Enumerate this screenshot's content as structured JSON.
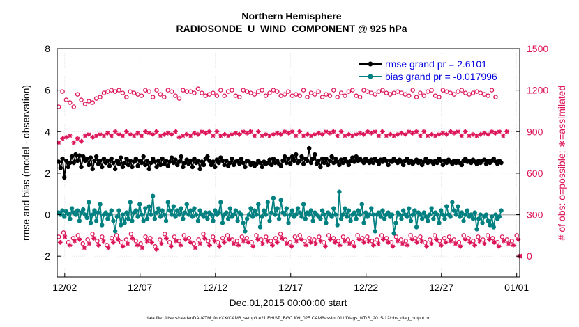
{
  "chart_data": {
    "type": "line",
    "title_line1": "Northern Hemisphere",
    "title_line2": "RADIOSONDE_U_WIND_COMPONENT @ 925 hPa",
    "xlabel": "Dec.01,2015 00:00:00 start",
    "ylabel_left": "rmse and bias (model - observation)",
    "ylabel_right": "# of obs: o=possible; ∗=assimilated",
    "footnote": "data file: /Users/raeder/DAI/ATM_forcXX/CAM6_setup/f.e21.FHIST_BGC.f09_025.CAM6assim.011/Diags_NTrS_2015-12/obs_diag_output.nc",
    "x_range_days": [
      0.5,
      31.2
    ],
    "x_ticks": [
      {
        "day": 1,
        "label": "12/02"
      },
      {
        "day": 6,
        "label": "12/07"
      },
      {
        "day": 11,
        "label": "12/12"
      },
      {
        "day": 16,
        "label": "12/17"
      },
      {
        "day": 21,
        "label": "12/22"
      },
      {
        "day": 26,
        "label": "12/27"
      },
      {
        "day": 31,
        "label": "01/01"
      }
    ],
    "y_left_range": [
      -3,
      8
    ],
    "y_left_ticks": [
      "-2",
      "0",
      "2",
      "4",
      "6",
      "8"
    ],
    "y_right_range": [
      -150,
      1500
    ],
    "y_right_ticks": [
      "0",
      "300",
      "600",
      "900",
      "1200",
      "1500"
    ],
    "legend": {
      "placement": "top-right",
      "rmse": "rmse grand pr = 2.6101",
      "bias": "bias grand pr = -0.017996"
    },
    "colors": {
      "rmse": "#000000",
      "bias": "#008080",
      "obs": "#dc1459",
      "zero_line": "#bbbbbb",
      "grid": "#d9d9d9"
    },
    "grid": true,
    "time_step_days": 0.25,
    "series": [
      {
        "name": "rmse grand pr = 2.6101",
        "values": [
          2.55,
          2.25,
          2.7,
          1.8,
          2.6,
          2.3,
          2.5,
          2.8,
          2.5,
          2.9,
          2.6,
          2.85,
          2.3,
          2.8,
          2.6,
          2.7,
          2.4,
          2.75,
          2.2,
          2.6,
          2.8,
          2.45,
          2.6,
          2.3,
          2.7,
          2.5,
          2.6,
          2.35,
          2.7,
          2.5,
          2.2,
          2.6,
          2.45,
          2.75,
          2.3,
          2.5,
          2.7,
          2.4,
          2.6,
          2.3,
          2.55,
          2.7,
          2.35,
          2.6,
          2.5,
          2.8,
          2.4,
          2.6,
          2.2,
          2.5,
          2.7,
          2.55,
          2.3,
          2.6,
          2.4,
          2.7,
          2.45,
          2.6,
          2.35,
          2.55,
          2.75,
          2.5,
          2.65,
          2.4,
          2.55,
          2.8,
          2.3,
          2.5,
          2.65,
          2.45,
          2.6,
          2.3,
          2.7,
          2.5,
          2.6,
          2.2,
          2.55,
          2.4,
          2.7,
          2.8,
          2.6,
          2.4,
          2.55,
          2.3,
          2.65,
          2.5,
          2.75,
          2.6,
          2.4,
          2.6,
          2.35,
          2.5,
          2.7,
          2.4,
          2.55,
          2.6,
          2.45,
          2.7,
          2.5,
          2.3,
          2.6,
          2.55,
          2.4,
          2.5,
          2.35,
          2.45,
          2.6,
          2.5,
          2.3,
          2.55,
          2.45,
          2.5,
          2.65,
          2.4,
          2.7,
          2.5,
          2.6,
          2.45,
          2.35,
          2.6,
          2.8,
          2.5,
          2.7,
          2.45,
          2.8,
          2.6,
          2.9,
          2.5,
          2.6,
          2.8,
          2.45,
          2.7,
          2.6,
          3.2,
          2.5,
          2.7,
          2.9,
          2.45,
          2.6,
          2.3,
          2.7,
          2.5,
          2.7,
          2.4,
          2.6,
          2.8,
          2.5,
          2.7,
          2.55,
          2.4,
          2.65,
          2.5,
          2.7,
          2.55,
          2.4,
          2.6,
          2.75,
          2.55,
          2.8,
          2.6,
          2.7,
          2.6,
          2.5,
          2.7,
          2.6,
          2.5,
          2.65,
          2.5,
          2.7,
          2.6,
          2.45,
          2.65,
          2.55,
          2.7,
          2.6,
          2.4,
          2.6,
          2.55,
          2.7,
          2.6,
          2.5,
          2.65,
          2.55,
          2.4,
          2.6,
          2.7,
          2.5,
          2.6,
          2.45,
          2.55,
          2.65,
          2.5,
          2.6,
          2.4,
          2.55,
          2.7,
          2.5,
          2.6,
          2.55,
          2.45,
          2.6,
          2.5,
          2.7,
          2.6,
          2.4,
          2.6,
          2.5,
          2.65,
          2.55,
          2.45,
          2.6,
          2.5,
          2.6,
          2.5,
          2.4,
          2.6,
          2.7,
          2.55,
          2.6,
          2.5,
          2.65,
          2.55,
          2.45,
          2.6,
          2.5,
          2.6,
          2.65,
          2.45,
          2.6,
          2.5,
          2.6,
          2.7,
          2.55,
          2.45,
          2.6,
          2.5
        ]
      },
      {
        "name": "bias grand pr = -0.017996",
        "values": [
          0.1,
          0.0,
          0.2,
          -0.1,
          0.15,
          0.05,
          -0.2,
          0.3,
          0.1,
          0.0,
          0.2,
          -0.3,
          0.1,
          0.25,
          0.0,
          -0.15,
          0.6,
          -0.4,
          0.0,
          0.2,
          -0.3,
          0.1,
          0.5,
          -0.5,
          0.0,
          0.1,
          -0.2,
          0.0,
          0.2,
          -0.3,
          -0.8,
          -0.1,
          0.2,
          -0.5,
          0.0,
          -0.4,
          0.1,
          -0.2,
          0.6,
          -0.3,
          0.1,
          0.2,
          -0.1,
          0.5,
          0.0,
          -0.3,
          0.3,
          -0.2,
          0.4,
          0.0,
          0.9,
          -0.2,
          0.1,
          0.3,
          -0.1,
          0.2,
          0.0,
          -0.3,
          0.6,
          0.2,
          0.0,
          0.4,
          -0.1,
          0.2,
          0.0,
          0.3,
          -0.2,
          0.1,
          0.5,
          0.0,
          0.2,
          -0.1,
          0.3,
          0.0,
          -0.3,
          0.2,
          0.0,
          -0.1,
          0.1,
          -0.2,
          0.1,
          0.0,
          -0.3,
          0.2,
          0.0,
          0.1,
          0.6,
          -0.4,
          0.0,
          0.1,
          -0.2,
          0.3,
          -0.1,
          0.0,
          0.2,
          -0.3,
          0.1,
          0.0,
          -0.4,
          -0.8,
          -0.2,
          0.0,
          0.3,
          -0.1,
          0.2,
          0.0,
          0.5,
          -0.6,
          -0.1,
          0.2,
          0.0,
          0.6,
          -0.3,
          0.1,
          0.8,
          0.0,
          0.3,
          -0.2,
          0.7,
          0.1,
          0.0,
          0.3,
          -0.4,
          0.0,
          0.2,
          -0.1,
          0.0,
          0.3,
          0.1,
          -0.1,
          0.5,
          -0.2,
          0.1,
          0.0,
          0.2,
          -0.3,
          0.1,
          0.0,
          -0.1,
          -0.2,
          0.2,
          0.0,
          -0.4,
          0.1,
          0.0,
          -0.1,
          0.3,
          0.0,
          -0.5,
          1.1,
          -0.2,
          0.0,
          0.3,
          -0.1,
          0.2,
          -0.3,
          0.0,
          0.1,
          -0.2,
          0.2,
          0.0,
          0.5,
          -0.4,
          0.1,
          -0.1,
          0.0,
          0.3,
          0.0,
          -0.8,
          0.0,
          0.1,
          -0.1,
          0.2,
          -0.2,
          0.0,
          0.1,
          -0.1,
          0.0,
          -0.9,
          -0.4,
          0.1,
          0.0,
          -0.2,
          0.2,
          0.0,
          -0.1,
          0.3,
          -0.3,
          0.0,
          0.2,
          -0.6,
          0.1,
          0.0,
          -0.2,
          0.1,
          -0.1,
          -0.3,
          0.0,
          0.3,
          -0.2,
          0.1,
          0.0,
          -0.4,
          0.2,
          0.0,
          -0.2,
          0.4,
          0.0,
          -0.1,
          0.6,
          0.2,
          0.0,
          0.4,
          -0.1,
          0.1,
          -0.3,
          0.0,
          0.2,
          -0.1,
          0.0,
          -0.2,
          0.1,
          -0.7,
          -0.2,
          0.0,
          -0.4,
          -0.1,
          0.0,
          -0.3,
          -0.5,
          -0.1,
          -0.6,
          0.0,
          -0.2,
          -0.1,
          0.2
        ]
      },
      {
        "name": "possible",
        "values": [
          1080,
          1150,
          1190,
          1110,
          1130,
          1100,
          1110,
          1120,
          1080,
          1150,
          1170,
          1110,
          1130,
          1180,
          1100,
          1160,
          1120,
          1130,
          1110,
          1180,
          1140,
          1200,
          1150,
          1190,
          1180,
          1150,
          1190,
          1140,
          1200,
          1170,
          1190,
          1180,
          1200,
          1160,
          1180,
          1210,
          1150,
          1170,
          1190,
          1140,
          1180,
          1130,
          1170,
          1190,
          1160,
          1180,
          1200,
          1170,
          1190,
          1160,
          1150,
          1180,
          1200,
          1160,
          1170,
          1190,
          1150,
          1180,
          1200,
          1170,
          1190,
          1180,
          1160,
          1190,
          1140,
          1180,
          1200,
          1170,
          1190,
          1160,
          1190,
          1200,
          1180,
          1170,
          1210,
          1150,
          1180,
          1190,
          1160,
          1200,
          1170,
          1150,
          1180,
          1190,
          1160,
          1170,
          1200,
          1180,
          1160,
          1150,
          1190,
          1170,
          1200,
          1180,
          1160,
          1190,
          1150,
          1180,
          1200,
          1170,
          1190,
          1160,
          1180,
          1200,
          1170,
          1150,
          1190,
          1180,
          1200,
          1170,
          1160,
          1190,
          1180,
          1150,
          1200,
          1170,
          1190,
          1180,
          1160,
          1200,
          1170,
          1150,
          1190,
          1180,
          1160,
          1200,
          1170,
          1190,
          1160,
          1180,
          1200,
          1170,
          1150,
          1190,
          1180,
          1200,
          1170,
          1160,
          1190,
          1180,
          1150,
          1200,
          1170,
          1190,
          1160,
          1180,
          1200,
          1170,
          1150,
          1190,
          1180,
          1200,
          1160,
          1180,
          1190,
          1170,
          1200,
          1180,
          1160,
          1190,
          1150,
          1180,
          1200,
          1170,
          1190,
          1160,
          1180,
          1200,
          1170,
          1150,
          1190,
          1180,
          1200,
          1160,
          1180,
          1190,
          1170,
          1200,
          1180,
          1160,
          1190,
          1150,
          1180,
          1200,
          1170,
          1190,
          1160,
          1180,
          1200,
          1170,
          1150,
          1190,
          1180,
          1200,
          1160,
          1180,
          1190,
          1170,
          1200,
          1180,
          1160,
          1190,
          1150,
          1180,
          1200,
          1170,
          1190,
          1160,
          1180,
          1200,
          1170,
          1150,
          1190,
          1180,
          1200,
          1160,
          1180,
          1190,
          1170,
          1200,
          1180,
          1160,
          1190,
          1150,
          1180,
          1200,
          1170,
          1190,
          1160,
          1180,
          1200,
          1170,
          1150,
          1190
        ],
        "sparse_every": 2
      },
      {
        "name": "assimilated",
        "values": [
          820,
          880,
          850,
          900,
          860,
          830,
          870,
          840,
          820,
          880,
          850,
          900,
          830,
          860,
          870,
          850,
          880,
          920,
          860,
          900,
          870,
          840,
          880,
          900,
          870,
          850,
          890,
          920,
          870,
          880,
          900,
          860,
          880,
          910,
          870,
          890,
          900,
          860,
          880,
          900,
          870,
          850,
          890,
          900,
          870,
          880,
          900,
          870,
          890,
          900,
          880,
          860,
          900,
          880,
          870,
          900,
          880,
          870,
          890,
          900,
          880,
          870,
          900,
          880,
          860,
          900,
          870,
          890,
          880,
          900,
          870,
          880,
          890,
          900,
          880,
          870,
          900,
          880,
          890,
          870,
          900,
          880,
          870,
          890,
          900,
          880,
          870,
          900,
          880,
          890,
          870,
          900,
          880,
          870,
          890,
          900,
          880,
          870,
          900,
          880,
          890,
          870,
          900,
          880,
          870,
          890,
          900,
          880,
          870,
          900,
          880,
          890,
          870,
          900,
          880,
          870,
          890,
          900,
          880,
          870,
          900,
          880,
          890,
          870,
          900,
          880,
          870,
          890,
          900,
          880,
          870,
          900,
          880,
          890,
          870,
          900,
          880,
          870,
          890,
          900,
          880,
          870,
          900,
          880,
          890,
          870,
          900,
          880,
          870,
          890,
          900,
          880,
          870,
          900,
          880,
          890,
          870,
          900,
          880,
          870,
          890,
          900,
          880,
          870,
          900,
          880,
          890,
          870,
          900,
          880,
          870,
          890,
          900,
          880,
          870,
          900,
          880,
          890,
          870,
          900,
          880,
          870,
          890,
          900,
          880,
          870,
          900,
          880,
          890,
          870,
          900,
          880,
          870,
          890,
          900,
          880,
          870,
          900,
          880,
          890,
          870,
          900,
          880,
          870,
          890,
          900,
          880,
          870,
          900,
          880,
          890,
          870,
          900,
          880,
          870,
          890,
          900,
          880,
          870,
          900,
          880,
          890,
          870,
          900,
          880,
          870,
          890,
          900,
          880,
          870,
          900,
          880,
          890,
          870,
          900,
          880,
          870,
          890,
          900,
          880
        ],
        "sparse_every": 2
      }
    ],
    "lower_obs": {
      "possible_values": [
        140,
        170,
        100,
        130,
        150,
        90,
        120,
        160,
        110,
        140,
        80,
        130,
        150,
        100,
        120,
        160,
        110,
        90,
        140,
        130,
        70,
        120,
        160,
        100,
        140,
        110,
        150,
        130,
        90,
        120,
        160,
        110,
        140,
        100,
        130,
        150,
        120,
        110,
        140,
        130,
        100,
        150,
        120,
        140,
        110,
        130,
        160,
        120,
        100,
        140,
        150,
        110,
        130,
        120,
        140,
        100,
        150,
        130,
        110,
        140,
        120,
        100,
        150,
        130,
        140,
        110,
        120,
        150,
        130,
        100,
        140,
        120,
        110,
        150,
        130,
        140,
        100,
        120,
        150,
        110,
        130,
        140,
        120,
        100,
        150,
        130,
        110,
        140,
        120,
        150,
        130,
        100,
        140,
        120,
        110,
        150
      ],
      "assimilated_values": [
        100,
        140,
        80,
        110,
        120,
        60,
        90,
        130,
        80,
        110,
        60,
        100,
        120,
        70,
        90,
        130,
        80,
        60,
        110,
        100,
        50,
        90,
        130,
        70,
        110,
        80,
        120,
        100,
        60,
        90,
        130,
        80,
        110,
        70,
        100,
        120,
        90,
        80,
        110,
        100,
        70,
        120,
        90,
        110,
        80,
        100,
        130,
        90,
        70,
        110,
        120,
        80,
        100,
        90,
        110,
        70,
        120,
        100,
        80,
        110,
        90,
        70,
        120,
        100,
        110,
        80,
        90,
        120,
        100,
        70,
        110,
        90,
        80,
        120,
        100,
        110,
        70,
        90,
        120,
        80,
        100,
        110,
        90,
        70,
        120,
        100,
        80,
        110,
        90,
        120,
        100,
        70,
        110,
        90,
        80,
        120
      ],
      "right_edge_marker": 0
    }
  }
}
